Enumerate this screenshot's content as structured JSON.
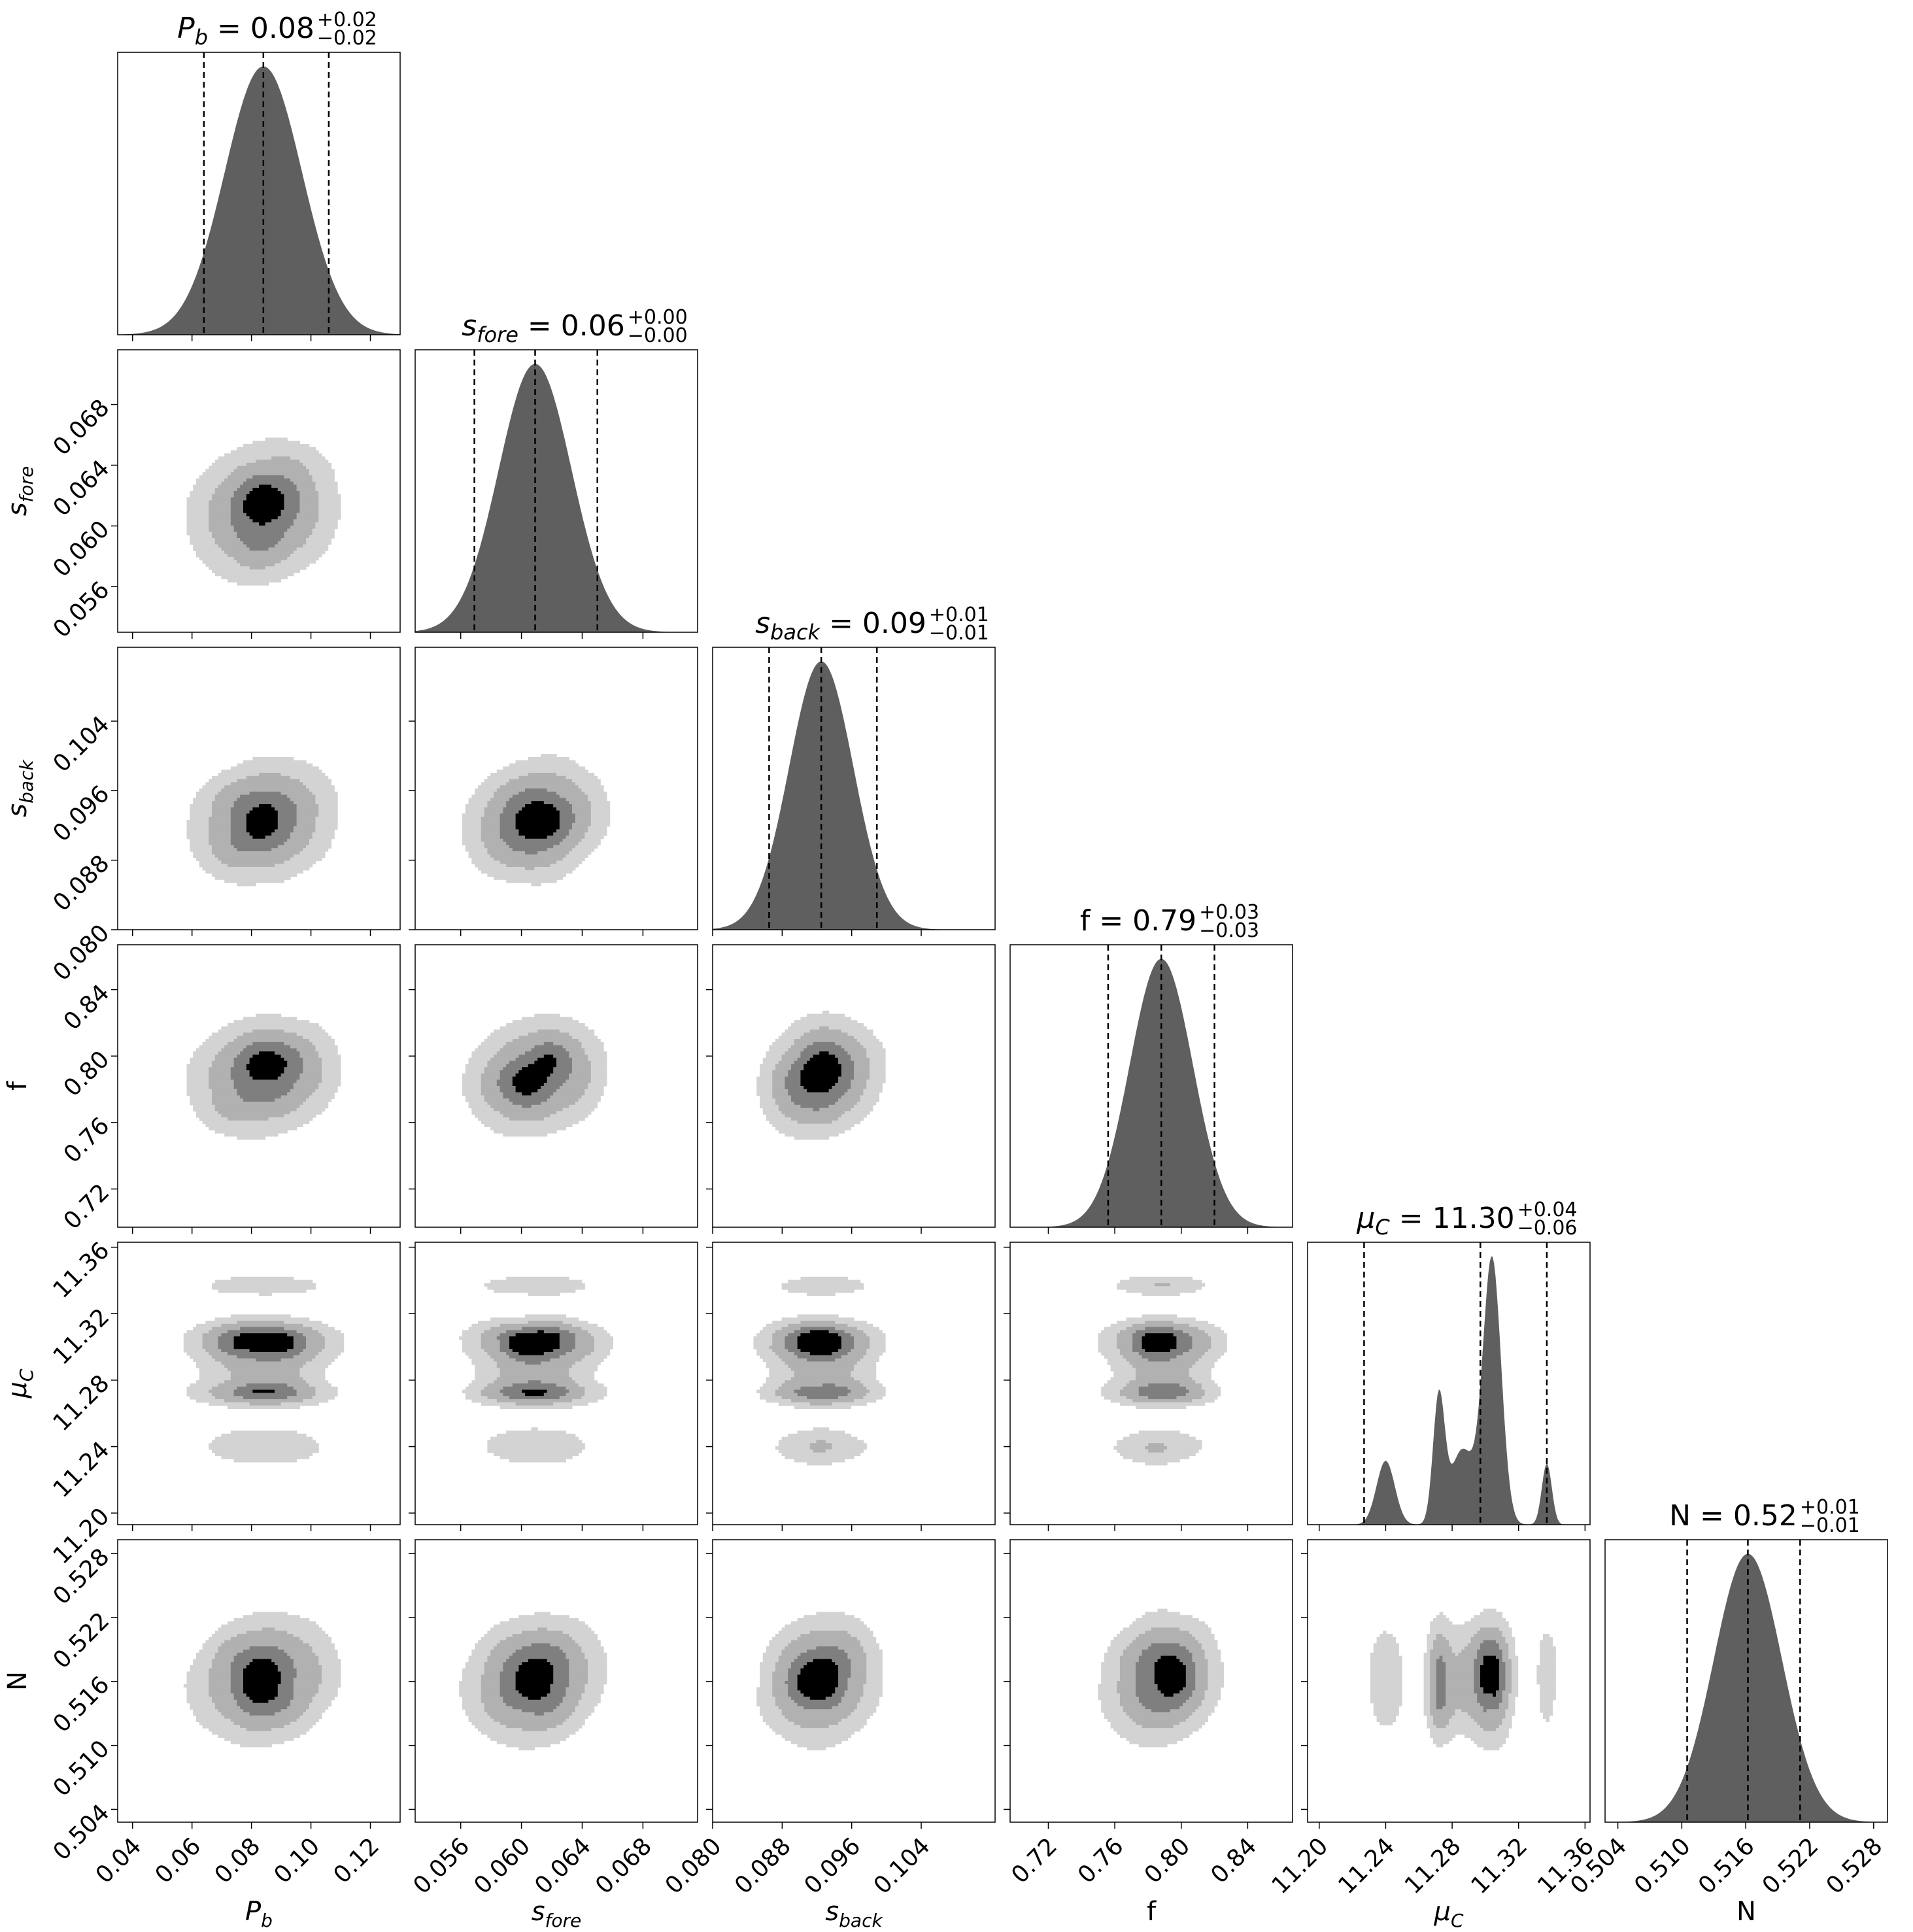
{
  "chart_data": {
    "type": "corner",
    "title": "",
    "params": [
      {
        "key": "Pb",
        "axis_label": "P",
        "axis_sub": "b",
        "title_value": "0.08",
        "title_plus": "+0.02",
        "title_minus": "−0.02",
        "median": 0.084,
        "q16": 0.064,
        "q84": 0.106,
        "std": 0.013,
        "xlim": [
          0.035,
          0.13
        ],
        "ticks": [
          0.04,
          0.06,
          0.08,
          0.1,
          0.12
        ],
        "tick_labels": [
          "0.04",
          "0.06",
          "0.08",
          "0.10",
          "0.12"
        ],
        "row_ticks": [],
        "row_tick_labels": []
      },
      {
        "key": "sfore",
        "axis_label": "s",
        "axis_sub": "fore",
        "title_value": "0.06",
        "title_plus": "+0.00",
        "title_minus": "−0.00",
        "median": 0.0609,
        "q16": 0.0569,
        "q84": 0.065,
        "std": 0.0024,
        "xlim": [
          0.053,
          0.0716
        ],
        "ticks": [
          0.056,
          0.06,
          0.064,
          0.068
        ],
        "tick_labels": [
          "0.056",
          "0.060",
          "0.064",
          "0.068"
        ],
        "row_ticks": [
          0.056,
          0.06,
          0.064,
          0.068
        ],
        "row_tick_labels": [
          "0.056",
          "0.060",
          "0.064",
          "0.068"
        ]
      },
      {
        "key": "sback",
        "axis_label": "s",
        "axis_sub": "back",
        "title_value": "0.09",
        "title_plus": "+0.01",
        "title_minus": "−0.01",
        "median": 0.0925,
        "q16": 0.0865,
        "q84": 0.0989,
        "std": 0.0037,
        "xlim": [
          0.08,
          0.1125
        ],
        "ticks": [
          0.08,
          0.088,
          0.096,
          0.104
        ],
        "tick_labels": [
          "0.080",
          "0.088",
          "0.096",
          "0.104"
        ],
        "row_ticks": [
          0.08,
          0.088,
          0.096,
          0.104
        ],
        "row_tick_labels": [
          "0.080",
          "0.088",
          "0.096",
          "0.104"
        ]
      },
      {
        "key": "f",
        "axis_label": "f",
        "axis_sub": "",
        "title_value": "0.79",
        "title_plus": "+0.03",
        "title_minus": "−0.03",
        "median": 0.788,
        "q16": 0.756,
        "q84": 0.82,
        "std": 0.019,
        "xlim": [
          0.697,
          0.867
        ],
        "ticks": [
          0.72,
          0.76,
          0.8,
          0.84
        ],
        "tick_labels": [
          "0.72",
          "0.76",
          "0.80",
          "0.84"
        ],
        "row_ticks": [
          0.72,
          0.76,
          0.8,
          0.84
        ],
        "row_tick_labels": [
          "0.72",
          "0.76",
          "0.80",
          "0.84"
        ]
      },
      {
        "key": "muC",
        "axis_label": "μ",
        "axis_sub": "C",
        "title_value": "11.30",
        "title_plus": "+0.04",
        "title_minus": "−0.06",
        "median": 11.297,
        "q16": 11.227,
        "q84": 11.337,
        "std": 0.03,
        "xlim": [
          11.193,
          11.363
        ],
        "ticks": [
          11.2,
          11.24,
          11.28,
          11.32,
          11.36
        ],
        "tick_labels": [
          "11.20",
          "11.24",
          "11.28",
          "11.32",
          "11.36"
        ],
        "row_ticks": [
          11.2,
          11.24,
          11.28,
          11.32,
          11.36
        ],
        "row_tick_labels": [
          "11.20",
          "11.24",
          "11.28",
          "11.32",
          "11.36"
        ],
        "modes": [
          {
            "mu": 11.24,
            "sd": 0.0055,
            "w": 0.24
          },
          {
            "mu": 11.272,
            "sd": 0.0035,
            "w": 0.47
          },
          {
            "mu": 11.304,
            "sd": 0.0055,
            "w": 1.0
          },
          {
            "mu": 11.286,
            "sd": 0.007,
            "w": 0.28
          },
          {
            "mu": 11.337,
            "sd": 0.003,
            "w": 0.23
          }
        ]
      },
      {
        "key": "N",
        "axis_label": "N",
        "axis_sub": "",
        "title_value": "0.52",
        "title_plus": "+0.01",
        "title_minus": "−0.01",
        "median": 0.5162,
        "q16": 0.5105,
        "q84": 0.5211,
        "std": 0.0032,
        "xlim": [
          0.5028,
          0.5293
        ],
        "ticks": [
          0.504,
          0.51,
          0.516,
          0.522,
          0.528
        ],
        "tick_labels": [
          "0.504",
          "0.510",
          "0.516",
          "0.522",
          "0.528"
        ],
        "row_ticks": [
          0.504,
          0.51,
          0.516,
          0.522,
          0.528
        ],
        "row_tick_labels": [
          "0.504",
          "0.510",
          "0.516",
          "0.522",
          "0.528"
        ]
      }
    ],
    "contour_levels": [
      0.9,
      0.7,
      0.45,
      0.15
    ],
    "contour_fills": [
      "#d3d3d3",
      "#b1b1b1",
      "#7f7f7f",
      "#000000"
    ],
    "hist_fill": "#5f5f5f"
  }
}
